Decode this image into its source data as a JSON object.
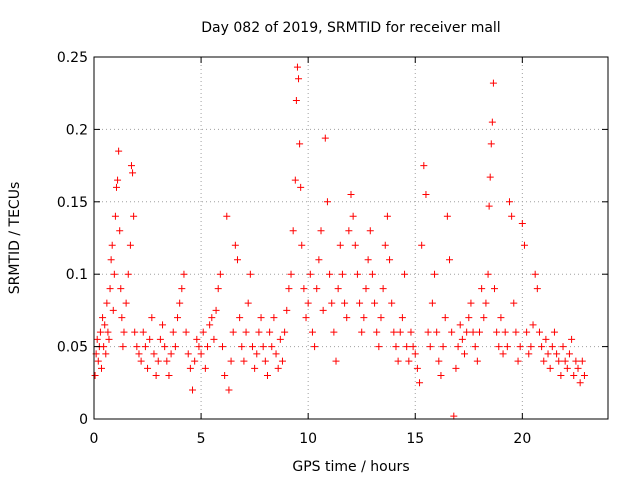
{
  "chart_data": {
    "type": "scatter",
    "title": "Day 082 of 2019, SRMTID for receiver mall",
    "xlabel": "GPS time / hours",
    "ylabel": "SRMTID / TECUs",
    "xlim": [
      0,
      24
    ],
    "ylim": [
      0,
      0.25
    ],
    "x_ticks": [
      0,
      5,
      10,
      15,
      20
    ],
    "x_tick_labels": [
      "0",
      "5",
      "10",
      "15",
      "20"
    ],
    "y_ticks": [
      0,
      0.05,
      0.1,
      0.15,
      0.2,
      0.25
    ],
    "y_tick_labels": [
      "0",
      "0.05",
      "0.1",
      "0.15",
      "0.2",
      "0.25"
    ],
    "grid": true,
    "marker": "+",
    "series": [
      {
        "name": "SRMTID",
        "color": "#ff0000",
        "points": [
          [
            0.05,
            0.03
          ],
          [
            0.1,
            0.045
          ],
          [
            0.15,
            0.055
          ],
          [
            0.2,
            0.04
          ],
          [
            0.25,
            0.05
          ],
          [
            0.3,
            0.06
          ],
          [
            0.35,
            0.035
          ],
          [
            0.4,
            0.07
          ],
          [
            0.45,
            0.05
          ],
          [
            0.5,
            0.065
          ],
          [
            0.55,
            0.045
          ],
          [
            0.6,
            0.08
          ],
          [
            0.65,
            0.06
          ],
          [
            0.7,
            0.055
          ],
          [
            0.75,
            0.09
          ],
          [
            0.8,
            0.11
          ],
          [
            0.85,
            0.12
          ],
          [
            0.9,
            0.075
          ],
          [
            0.95,
            0.1
          ],
          [
            1.0,
            0.14
          ],
          [
            1.05,
            0.16
          ],
          [
            1.1,
            0.165
          ],
          [
            1.15,
            0.185
          ],
          [
            1.2,
            0.13
          ],
          [
            1.25,
            0.09
          ],
          [
            1.3,
            0.07
          ],
          [
            1.35,
            0.05
          ],
          [
            1.4,
            0.06
          ],
          [
            1.5,
            0.08
          ],
          [
            1.6,
            0.1
          ],
          [
            1.7,
            0.12
          ],
          [
            1.75,
            0.175
          ],
          [
            1.8,
            0.17
          ],
          [
            1.85,
            0.14
          ],
          [
            1.9,
            0.06
          ],
          [
            2.0,
            0.05
          ],
          [
            2.1,
            0.045
          ],
          [
            2.2,
            0.04
          ],
          [
            2.3,
            0.06
          ],
          [
            2.4,
            0.05
          ],
          [
            2.5,
            0.035
          ],
          [
            2.6,
            0.055
          ],
          [
            2.7,
            0.07
          ],
          [
            2.8,
            0.045
          ],
          [
            2.9,
            0.03
          ],
          [
            3.0,
            0.04
          ],
          [
            3.1,
            0.055
          ],
          [
            3.2,
            0.065
          ],
          [
            3.3,
            0.05
          ],
          [
            3.4,
            0.04
          ],
          [
            3.5,
            0.03
          ],
          [
            3.6,
            0.045
          ],
          [
            3.7,
            0.06
          ],
          [
            3.8,
            0.05
          ],
          [
            3.9,
            0.07
          ],
          [
            4.0,
            0.08
          ],
          [
            4.1,
            0.09
          ],
          [
            4.2,
            0.1
          ],
          [
            4.3,
            0.06
          ],
          [
            4.4,
            0.045
          ],
          [
            4.5,
            0.035
          ],
          [
            4.6,
            0.02
          ],
          [
            4.7,
            0.04
          ],
          [
            4.8,
            0.055
          ],
          [
            4.9,
            0.05
          ],
          [
            5.0,
            0.045
          ],
          [
            5.1,
            0.06
          ],
          [
            5.2,
            0.035
          ],
          [
            5.3,
            0.05
          ],
          [
            5.4,
            0.065
          ],
          [
            5.5,
            0.07
          ],
          [
            5.6,
            0.055
          ],
          [
            5.7,
            0.075
          ],
          [
            5.8,
            0.09
          ],
          [
            5.9,
            0.1
          ],
          [
            6.0,
            0.05
          ],
          [
            6.1,
            0.03
          ],
          [
            6.2,
            0.14
          ],
          [
            6.3,
            0.02
          ],
          [
            6.4,
            0.04
          ],
          [
            6.5,
            0.06
          ],
          [
            6.6,
            0.12
          ],
          [
            6.7,
            0.11
          ],
          [
            6.8,
            0.07
          ],
          [
            6.9,
            0.05
          ],
          [
            7.0,
            0.04
          ],
          [
            7.1,
            0.06
          ],
          [
            7.2,
            0.08
          ],
          [
            7.3,
            0.1
          ],
          [
            7.4,
            0.05
          ],
          [
            7.5,
            0.035
          ],
          [
            7.6,
            0.045
          ],
          [
            7.7,
            0.06
          ],
          [
            7.8,
            0.07
          ],
          [
            7.9,
            0.05
          ],
          [
            8.0,
            0.04
          ],
          [
            8.1,
            0.03
          ],
          [
            8.2,
            0.06
          ],
          [
            8.3,
            0.05
          ],
          [
            8.4,
            0.07
          ],
          [
            8.5,
            0.045
          ],
          [
            8.6,
            0.035
          ],
          [
            8.7,
            0.055
          ],
          [
            8.8,
            0.04
          ],
          [
            8.9,
            0.06
          ],
          [
            9.0,
            0.075
          ],
          [
            9.1,
            0.09
          ],
          [
            9.2,
            0.1
          ],
          [
            9.3,
            0.13
          ],
          [
            9.4,
            0.165
          ],
          [
            9.45,
            0.22
          ],
          [
            9.5,
            0.243
          ],
          [
            9.55,
            0.235
          ],
          [
            9.6,
            0.19
          ],
          [
            9.65,
            0.16
          ],
          [
            9.7,
            0.12
          ],
          [
            9.8,
            0.09
          ],
          [
            9.9,
            0.07
          ],
          [
            10.0,
            0.08
          ],
          [
            10.1,
            0.1
          ],
          [
            10.2,
            0.06
          ],
          [
            10.3,
            0.05
          ],
          [
            10.4,
            0.09
          ],
          [
            10.5,
            0.11
          ],
          [
            10.6,
            0.13
          ],
          [
            10.7,
            0.075
          ],
          [
            10.8,
            0.194
          ],
          [
            10.9,
            0.15
          ],
          [
            11.0,
            0.1
          ],
          [
            11.1,
            0.08
          ],
          [
            11.2,
            0.06
          ],
          [
            11.3,
            0.04
          ],
          [
            11.4,
            0.09
          ],
          [
            11.5,
            0.12
          ],
          [
            11.6,
            0.1
          ],
          [
            11.7,
            0.08
          ],
          [
            11.8,
            0.07
          ],
          [
            11.9,
            0.13
          ],
          [
            12.0,
            0.155
          ],
          [
            12.1,
            0.14
          ],
          [
            12.2,
            0.12
          ],
          [
            12.3,
            0.1
          ],
          [
            12.4,
            0.08
          ],
          [
            12.5,
            0.06
          ],
          [
            12.6,
            0.07
          ],
          [
            12.7,
            0.09
          ],
          [
            12.8,
            0.11
          ],
          [
            12.9,
            0.13
          ],
          [
            13.0,
            0.1
          ],
          [
            13.1,
            0.08
          ],
          [
            13.2,
            0.06
          ],
          [
            13.3,
            0.05
          ],
          [
            13.4,
            0.07
          ],
          [
            13.5,
            0.09
          ],
          [
            13.6,
            0.12
          ],
          [
            13.7,
            0.14
          ],
          [
            13.8,
            0.11
          ],
          [
            13.9,
            0.08
          ],
          [
            14.0,
            0.06
          ],
          [
            14.1,
            0.05
          ],
          [
            14.2,
            0.04
          ],
          [
            14.3,
            0.06
          ],
          [
            14.4,
            0.07
          ],
          [
            14.5,
            0.1
          ],
          [
            14.6,
            0.05
          ],
          [
            14.7,
            0.04
          ],
          [
            14.8,
            0.06
          ],
          [
            14.9,
            0.05
          ],
          [
            15.0,
            0.045
          ],
          [
            15.1,
            0.035
          ],
          [
            15.2,
            0.025
          ],
          [
            15.3,
            0.12
          ],
          [
            15.4,
            0.175
          ],
          [
            15.5,
            0.155
          ],
          [
            15.6,
            0.06
          ],
          [
            15.7,
            0.05
          ],
          [
            15.8,
            0.08
          ],
          [
            15.9,
            0.1
          ],
          [
            16.0,
            0.06
          ],
          [
            16.1,
            0.04
          ],
          [
            16.2,
            0.03
          ],
          [
            16.3,
            0.05
          ],
          [
            16.4,
            0.07
          ],
          [
            16.5,
            0.14
          ],
          [
            16.6,
            0.11
          ],
          [
            16.7,
            0.06
          ],
          [
            16.8,
            0.002
          ],
          [
            16.9,
            0.035
          ],
          [
            17.0,
            0.05
          ],
          [
            17.1,
            0.065
          ],
          [
            17.2,
            0.055
          ],
          [
            17.3,
            0.045
          ],
          [
            17.4,
            0.06
          ],
          [
            17.5,
            0.07
          ],
          [
            17.6,
            0.08
          ],
          [
            17.7,
            0.06
          ],
          [
            17.8,
            0.05
          ],
          [
            17.9,
            0.04
          ],
          [
            18.0,
            0.06
          ],
          [
            18.1,
            0.09
          ],
          [
            18.2,
            0.07
          ],
          [
            18.3,
            0.08
          ],
          [
            18.4,
            0.1
          ],
          [
            18.45,
            0.147
          ],
          [
            18.5,
            0.167
          ],
          [
            18.55,
            0.19
          ],
          [
            18.6,
            0.205
          ],
          [
            18.65,
            0.232
          ],
          [
            18.7,
            0.09
          ],
          [
            18.8,
            0.06
          ],
          [
            18.9,
            0.05
          ],
          [
            19.0,
            0.07
          ],
          [
            19.1,
            0.045
          ],
          [
            19.2,
            0.06
          ],
          [
            19.3,
            0.05
          ],
          [
            19.4,
            0.15
          ],
          [
            19.5,
            0.14
          ],
          [
            19.6,
            0.08
          ],
          [
            19.7,
            0.06
          ],
          [
            19.8,
            0.04
          ],
          [
            19.9,
            0.05
          ],
          [
            20.0,
            0.135
          ],
          [
            20.1,
            0.12
          ],
          [
            20.2,
            0.06
          ],
          [
            20.3,
            0.045
          ],
          [
            20.4,
            0.05
          ],
          [
            20.5,
            0.065
          ],
          [
            20.6,
            0.1
          ],
          [
            20.7,
            0.09
          ],
          [
            20.8,
            0.06
          ],
          [
            20.9,
            0.05
          ],
          [
            21.0,
            0.04
          ],
          [
            21.1,
            0.055
          ],
          [
            21.2,
            0.045
          ],
          [
            21.3,
            0.035
          ],
          [
            21.4,
            0.05
          ],
          [
            21.5,
            0.06
          ],
          [
            21.6,
            0.045
          ],
          [
            21.7,
            0.04
          ],
          [
            21.8,
            0.03
          ],
          [
            21.9,
            0.05
          ],
          [
            22.0,
            0.04
          ],
          [
            22.1,
            0.035
          ],
          [
            22.2,
            0.045
          ],
          [
            22.3,
            0.055
          ],
          [
            22.4,
            0.03
          ],
          [
            22.5,
            0.04
          ],
          [
            22.6,
            0.035
          ],
          [
            22.7,
            0.025
          ],
          [
            22.8,
            0.04
          ],
          [
            22.9,
            0.03
          ]
        ]
      }
    ]
  }
}
